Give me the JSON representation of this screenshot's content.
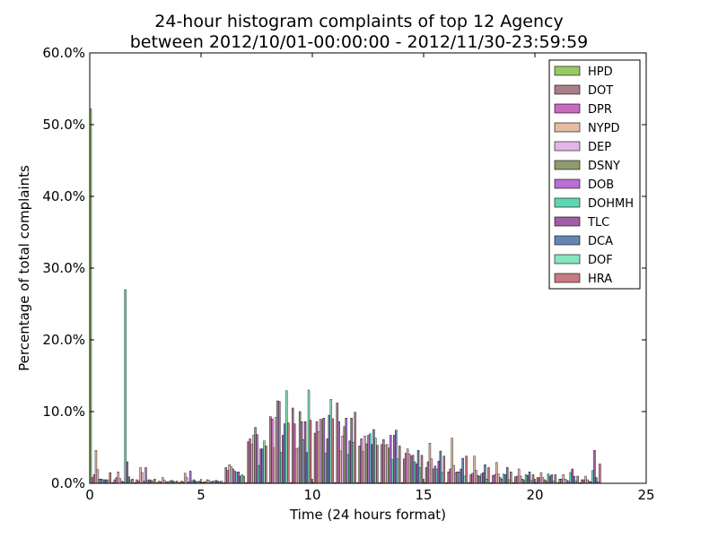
{
  "title": {
    "line1": "24-hour histogram complaints of top 12 Agency",
    "line2": "between 2012/10/01-00:00:00 - 2012/11/30-23:59:59"
  },
  "chart_data": {
    "type": "bar",
    "xlabel": "Time (24 hours format)",
    "ylabel": "Percentage of total complaints",
    "xlim": [
      0,
      25
    ],
    "ylim": [
      0,
      60
    ],
    "x_ticks": [
      0,
      5,
      10,
      15,
      20,
      25
    ],
    "x_tick_labels": [
      "0",
      "5",
      "10",
      "15",
      "20",
      "25"
    ],
    "y_ticks": [
      0,
      10,
      20,
      30,
      40,
      50,
      60
    ],
    "y_tick_labels": [
      "0.0%",
      "10.0%",
      "20.0%",
      "30.0%",
      "40.0%",
      "50.0%",
      "60.0%"
    ],
    "legend_position": "top-right",
    "grid": false,
    "categories": [
      0,
      1,
      2,
      3,
      4,
      5,
      6,
      7,
      8,
      9,
      10,
      11,
      12,
      13,
      14,
      15,
      16,
      17,
      18,
      19,
      20,
      21,
      22
    ],
    "series": [
      {
        "name": "HPD",
        "color": "#98c963",
        "values": [
          52.2,
          0.1,
          0.1,
          0.1,
          0.1,
          0.1,
          0.1,
          0.1,
          0.1,
          0.1,
          0.1,
          0.1,
          0.1,
          0.1,
          0.1,
          0.1,
          0.1,
          0.1,
          0.1,
          0.1,
          0.1,
          0.1,
          0.1
        ]
      },
      {
        "name": "DOT",
        "color": "#a97f8a",
        "values": [
          0.8,
          0.5,
          0.5,
          0.3,
          0.3,
          0.2,
          2.2,
          5.8,
          9.3,
          10.5,
          7.0,
          11.2,
          5.2,
          5.4,
          3.4,
          2.2,
          1.6,
          1.2,
          1.1,
          0.9,
          0.8,
          0.6,
          0.5
        ]
      },
      {
        "name": "DPR",
        "color": "#c96bbf",
        "values": [
          1.2,
          0.8,
          0.3,
          0.2,
          0.2,
          0.2,
          1.8,
          6.2,
          9.0,
          8.3,
          8.6,
          8.6,
          6.2,
          6.1,
          4.2,
          3.0,
          2.0,
          1.4,
          1.2,
          1.0,
          0.8,
          0.6,
          0.5
        ]
      },
      {
        "name": "NYPD",
        "color": "#e6bca0",
        "values": [
          4.6,
          1.6,
          2.2,
          0.8,
          1.4,
          0.5,
          2.6,
          5.4,
          4.9,
          4.8,
          7.2,
          4.5,
          4.4,
          5.3,
          4.8,
          5.6,
          6.3,
          3.8,
          2.9,
          2.0,
          1.5,
          1.2,
          1.0
        ]
      },
      {
        "name": "DEP",
        "color": "#e4b6e6",
        "values": [
          1.9,
          0.7,
          1.5,
          0.4,
          0.8,
          0.4,
          2.3,
          6.7,
          9.2,
          4.9,
          8.9,
          6.6,
          6.6,
          5.4,
          4.1,
          3.4,
          2.5,
          1.8,
          1.3,
          1.0,
          0.8,
          0.6,
          0.5
        ]
      },
      {
        "name": "DSNY",
        "color": "#8f9b6c",
        "values": [
          0.6,
          0.3,
          0.3,
          0.2,
          0.2,
          0.2,
          2.0,
          7.8,
          11.5,
          10.0,
          8.9,
          7.9,
          5.5,
          4.9,
          3.8,
          2.0,
          1.5,
          1.1,
          0.8,
          0.6,
          0.5,
          0.4,
          0.3
        ]
      },
      {
        "name": "DOB",
        "color": "#b96fd4",
        "values": [
          0.6,
          0.2,
          2.2,
          0.2,
          1.7,
          0.3,
          1.7,
          6.8,
          11.4,
          8.6,
          9.1,
          9.1,
          6.7,
          6.7,
          3.9,
          2.4,
          1.6,
          1.0,
          0.6,
          0.4,
          0.3,
          0.3,
          0.2
        ]
      },
      {
        "name": "DOHMH",
        "color": "#5fd7b4",
        "values": [
          0.5,
          27.0,
          0.4,
          0.3,
          0.3,
          0.3,
          1.5,
          2.5,
          4.3,
          6.1,
          4.2,
          4.0,
          6.9,
          3.3,
          3.0,
          2.0,
          1.6,
          1.3,
          1.3,
          1.2,
          1.3,
          1.5,
          1.8
        ]
      },
      {
        "name": "TLC",
        "color": "#a35ca6",
        "values": [
          0.5,
          3.0,
          0.5,
          0.4,
          0.5,
          0.4,
          1.6,
          4.8,
          6.7,
          8.6,
          6.2,
          5.9,
          5.4,
          6.7,
          2.7,
          3.1,
          2.0,
          1.5,
          1.2,
          1.1,
          1.0,
          2.0,
          4.6
        ]
      },
      {
        "name": "DCA",
        "color": "#6487b2",
        "values": [
          0.5,
          0.9,
          0.4,
          0.3,
          0.3,
          0.3,
          1.0,
          4.8,
          8.3,
          4.3,
          9.5,
          9.1,
          7.5,
          7.4,
          4.6,
          4.5,
          3.5,
          2.6,
          2.2,
          1.6,
          1.2,
          1.0,
          0.8
        ]
      },
      {
        "name": "DOF",
        "color": "#86e6bc",
        "values": [
          0.4,
          0.4,
          0.3,
          0.2,
          0.2,
          0.2,
          1.2,
          5.9,
          12.9,
          13.0,
          11.7,
          5.7,
          6.3,
          3.4,
          2.2,
          1.5,
          1.0,
          0.6,
          0.5,
          0.4,
          0.3,
          0.3,
          0.2
        ]
      },
      {
        "name": "HRA",
        "color": "#c77a80",
        "values": [
          1.5,
          0.6,
          0.6,
          0.3,
          0.3,
          0.3,
          1.0,
          5.2,
          8.4,
          8.8,
          9.0,
          9.9,
          5.3,
          5.2,
          3.9,
          3.8,
          3.8,
          2.2,
          1.6,
          1.2,
          1.2,
          1.0,
          2.7
        ]
      }
    ]
  }
}
